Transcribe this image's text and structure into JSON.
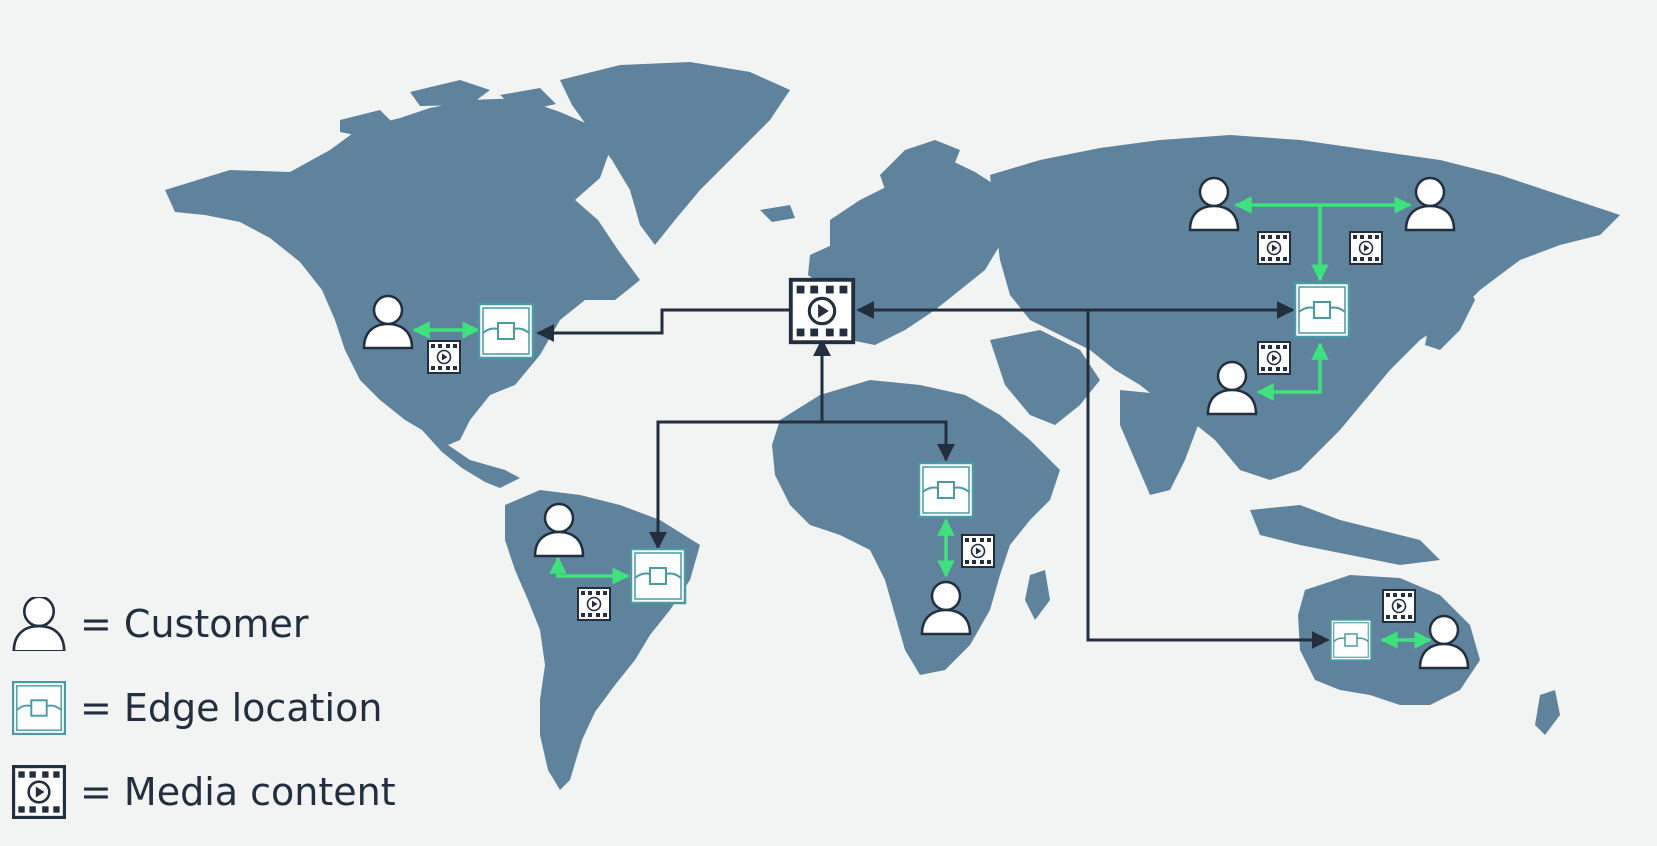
{
  "colors": {
    "background": "#f2f3f3",
    "land": "#5f839c",
    "backbone_arrow": "#232f3e",
    "customer_link": "#3ee27c",
    "edge_icon": "#4a9aa6",
    "text": "#232f3e"
  },
  "icons": {
    "customer": "person-icon",
    "edge_location": "edge-location-icon",
    "media_content": "film-play-icon"
  },
  "legend": [
    {
      "icon": "person-icon",
      "label": "= Customer"
    },
    {
      "icon": "edge-location-icon",
      "label": "= Edge location"
    },
    {
      "icon": "film-play-icon",
      "label": "= Media content"
    }
  ]
}
